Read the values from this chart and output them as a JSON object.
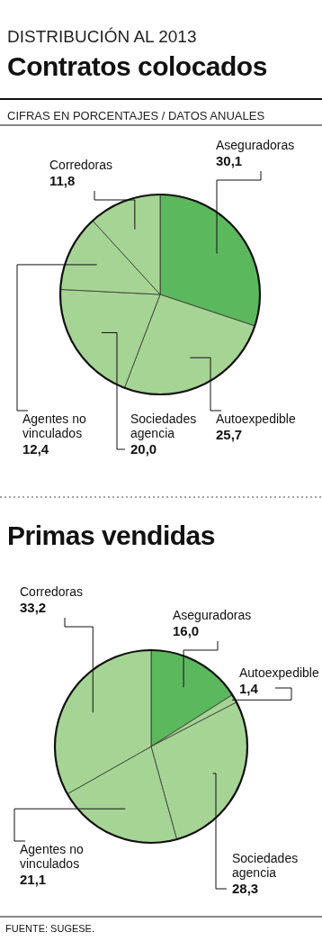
{
  "chart_data": [
    {
      "type": "pie",
      "subtitle": "DISTRIBUCIÓN AL 2013",
      "title": "Contratos colocados",
      "annotations": [
        "CIFRAS EN PORCENTAJES /  DATOS ANUALES"
      ],
      "categories": [
        "Aseguradoras",
        "Autoexpedible",
        "Sociedades agencia",
        "Agentes no vinculados",
        "Corredoras"
      ],
      "values": [
        30.1,
        25.7,
        20.0,
        12.4,
        11.8
      ],
      "value_labels": [
        "30,1",
        "25,7",
        "20,0",
        "12,4",
        "11,8"
      ],
      "colors": [
        "#5cb85c",
        "#a6d494",
        "#a6d494",
        "#a6d494",
        "#a6d494"
      ]
    },
    {
      "type": "pie",
      "title": "Primas vendidas",
      "annotations": [
        "FUENTE: SUGESE."
      ],
      "categories": [
        "Aseguradoras",
        "Autoexpedible",
        "Sociedades agencia",
        "Agentes no vinculados",
        "Corredoras"
      ],
      "values": [
        16.0,
        1.4,
        28.3,
        21.1,
        33.2
      ],
      "value_labels": [
        "16,0",
        "1,4",
        "28,3",
        "21,1",
        "33,2"
      ],
      "colors": [
        "#5cb85c",
        "#a6d494",
        "#a6d494",
        "#a6d494",
        "#a6d494"
      ]
    }
  ]
}
